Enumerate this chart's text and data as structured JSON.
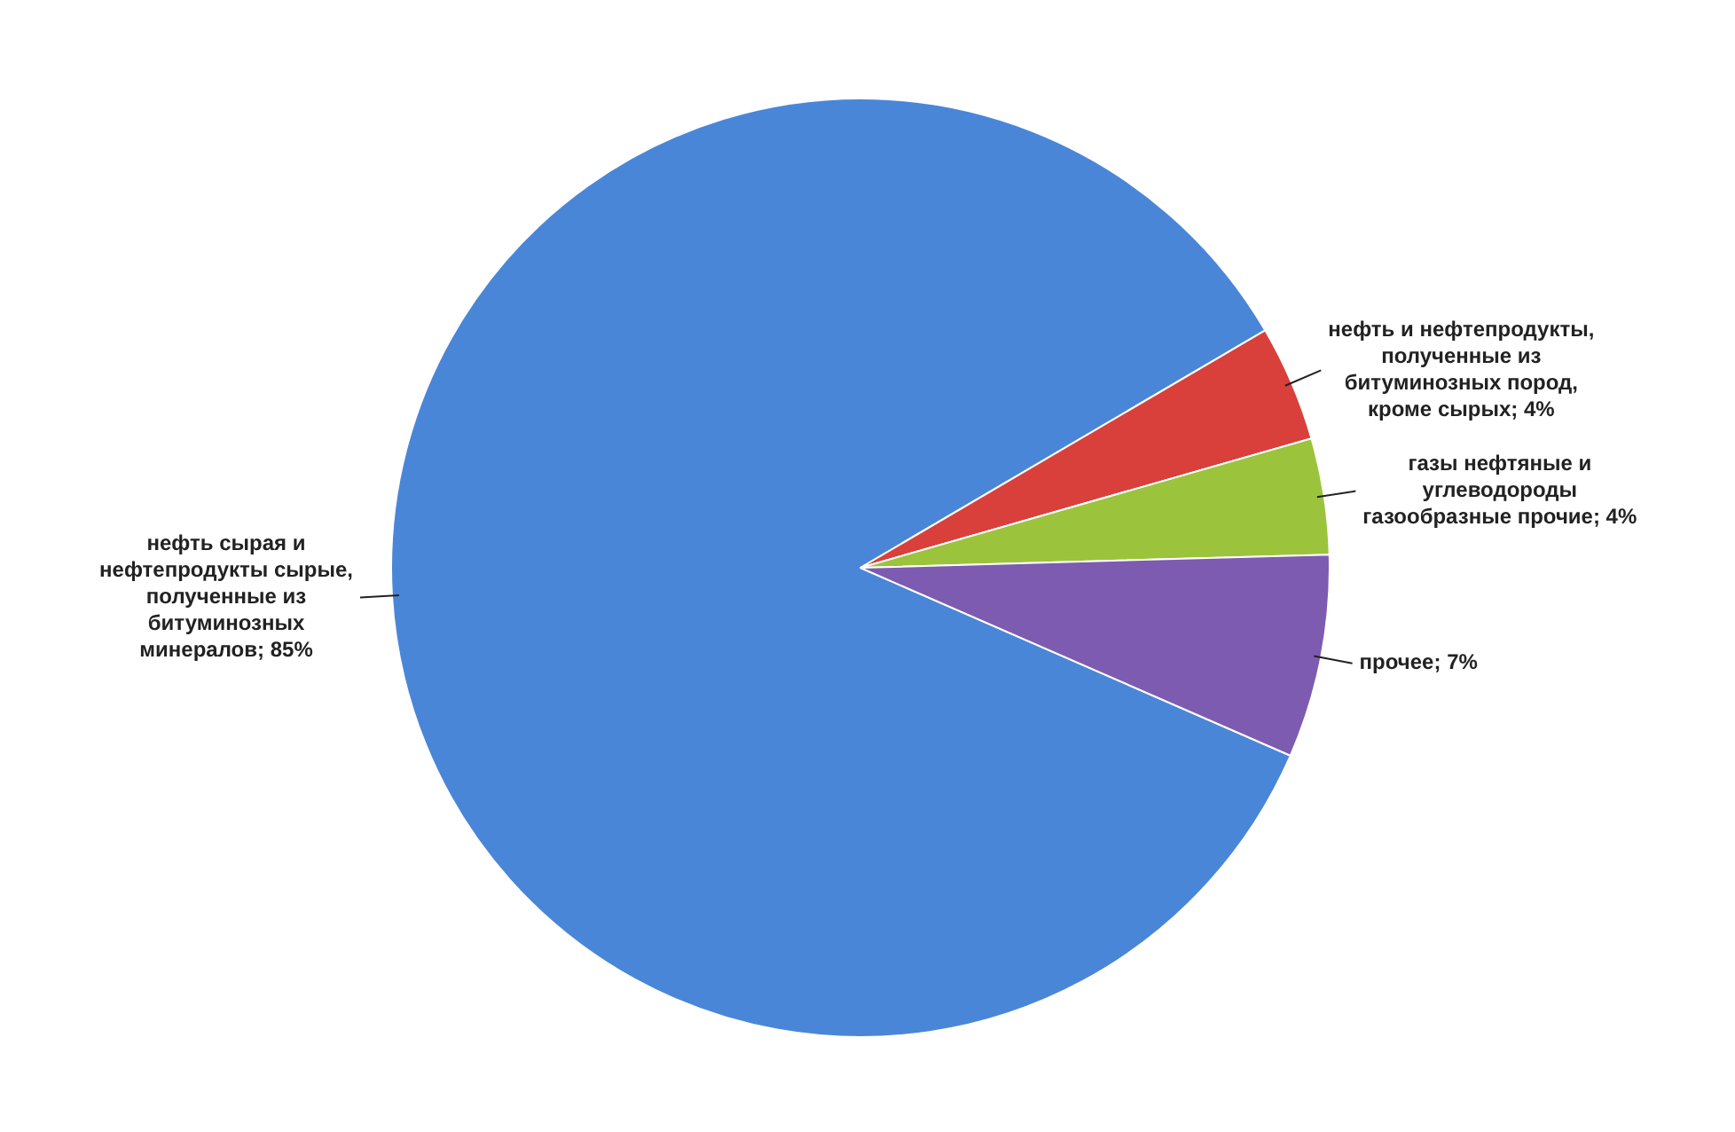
{
  "chart_data": {
    "type": "pie",
    "categories": [
      "нефть сырая и нефтепродукты сырые, полученные из битуминозных минералов",
      "нефть и нефтепродукты, полученные из битуминозных пород, кроме сырых",
      "газы нефтяные и углеводороды газообразные прочие",
      "прочее"
    ],
    "values": [
      85,
      4,
      4,
      7
    ],
    "value_labels": [
      "85%",
      "4%",
      "4%",
      "7%"
    ],
    "colors": [
      "#4a86d8",
      "#d9403b",
      "#9bc43c",
      "#7d5bb0"
    ],
    "legend": false
  }
}
